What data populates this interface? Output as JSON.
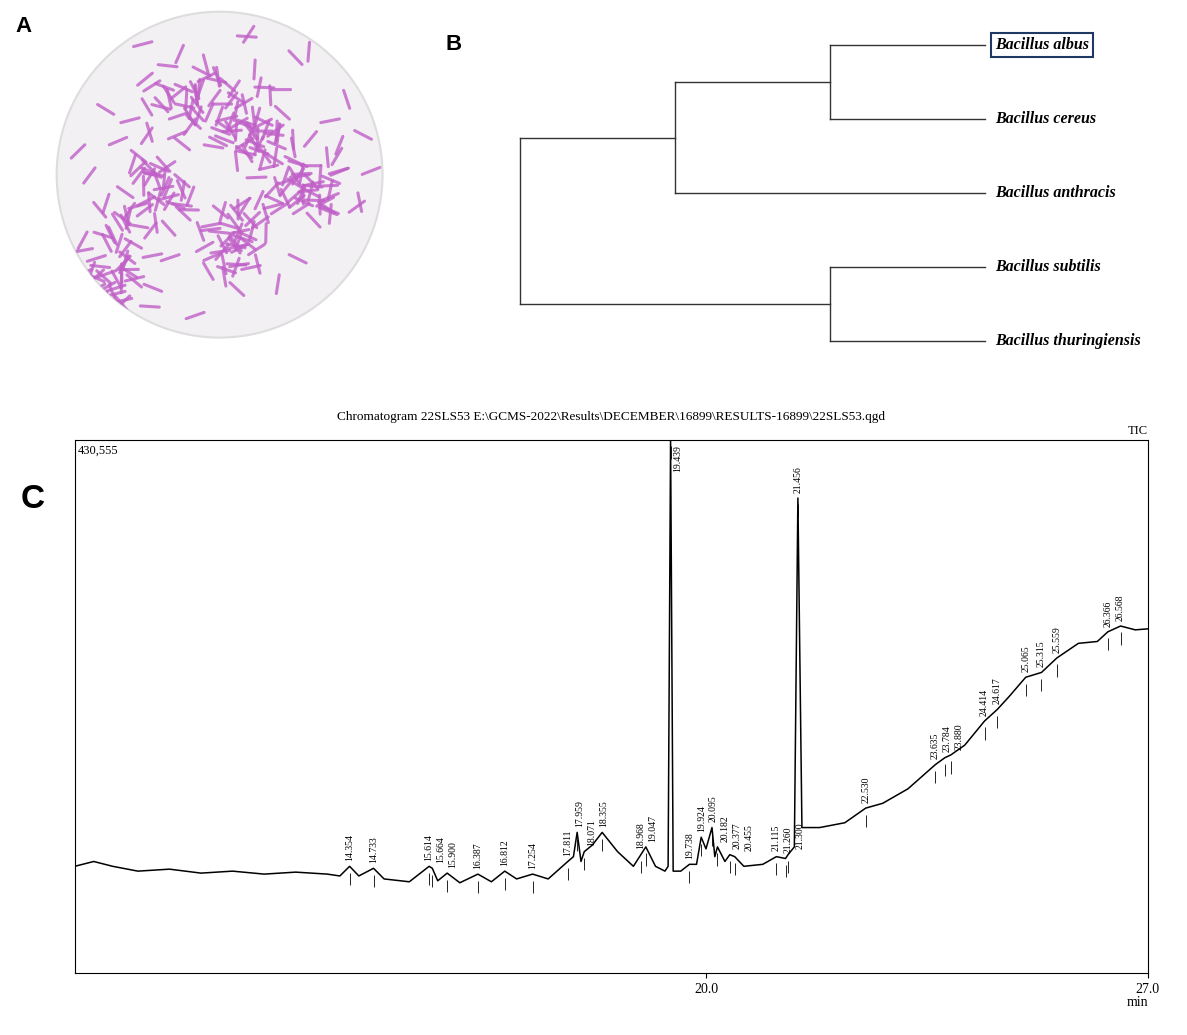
{
  "panel_labels": [
    "A",
    "B",
    "C"
  ],
  "tree": {
    "clades": [
      [
        [
          "Bacillus albus",
          "Bacillus cereus"
        ],
        "Bacillus anthracis"
      ],
      [
        "Bacillus subtilis",
        "Bacillus thuringiensis"
      ]
    ],
    "highlight": "Bacillus albus"
  },
  "chart_data": {
    "type": "line",
    "title": "Chromatogram 22SLS53 E:\\GCMS-2022\\Results\\DECEMBER\\16899\\RESULTS-16899\\22SLS53.qgd",
    "series_name": "TIC",
    "max_intensity_label": "430,555",
    "xlabel": "min",
    "color": "#000000",
    "x": [
      10.0,
      10.3,
      10.6,
      11.0,
      11.5,
      12.0,
      12.5,
      13.0,
      13.5,
      14.0,
      14.2,
      14.354,
      14.5,
      14.733,
      14.9,
      15.3,
      15.614,
      15.664,
      15.75,
      15.9,
      16.1,
      16.387,
      16.6,
      16.812,
      17.0,
      17.254,
      17.5,
      17.811,
      17.9,
      17.959,
      18.02,
      18.071,
      18.2,
      18.355,
      18.6,
      18.85,
      18.968,
      19.047,
      19.2,
      19.35,
      19.4,
      19.439,
      19.48,
      19.6,
      19.738,
      19.85,
      19.924,
      20.0,
      20.095,
      20.14,
      20.182,
      20.3,
      20.377,
      20.455,
      20.6,
      20.9,
      21.115,
      21.26,
      21.3,
      21.4,
      21.456,
      21.52,
      21.8,
      22.2,
      22.53,
      22.8,
      23.2,
      23.635,
      23.784,
      23.88,
      24.1,
      24.414,
      24.617,
      24.8,
      25.065,
      25.315,
      25.559,
      25.9,
      26.2,
      26.366,
      26.568,
      26.8,
      27.0
    ],
    "values": [
      86100,
      90000,
      86100,
      82200,
      83800,
      80600,
      82200,
      79800,
      81400,
      79800,
      78300,
      86100,
      78300,
      84500,
      75900,
      73600,
      86100,
      84500,
      74400,
      80600,
      72800,
      79800,
      73600,
      82200,
      75900,
      79800,
      75900,
      90000,
      93900,
      113500,
      90000,
      97900,
      103300,
      113500,
      97900,
      86100,
      95500,
      101800,
      86100,
      82200,
      86100,
      430555,
      82200,
      82200,
      87700,
      87700,
      109600,
      100200,
      117400,
      93900,
      101800,
      90000,
      95500,
      93900,
      86100,
      87700,
      93900,
      92400,
      95500,
      101800,
      383600,
      117400,
      117400,
      121300,
      133100,
      137000,
      148700,
      168300,
      173800,
      176100,
      184000,
      203500,
      212900,
      223100,
      238800,
      242700,
      254400,
      266200,
      267700,
      275500,
      280200,
      277100,
      277900
    ],
    "peaks": [
      {
        "x": 14.354,
        "label": "14.354"
      },
      {
        "x": 14.733,
        "label": "14.733"
      },
      {
        "x": 15.614,
        "label": "15.614"
      },
      {
        "x": 15.664,
        "label": "15.664"
      },
      {
        "x": 15.9,
        "label": "15.900"
      },
      {
        "x": 16.387,
        "label": "16.387"
      },
      {
        "x": 16.812,
        "label": "16.812"
      },
      {
        "x": 17.254,
        "label": "17.254"
      },
      {
        "x": 17.811,
        "label": "17.811"
      },
      {
        "x": 17.959,
        "label": "17.959"
      },
      {
        "x": 18.071,
        "label": "18.071"
      },
      {
        "x": 18.355,
        "label": "18.355"
      },
      {
        "x": 18.968,
        "label": "18.968"
      },
      {
        "x": 19.047,
        "label": "19.047"
      },
      {
        "x": 19.439,
        "label": "19.439"
      },
      {
        "x": 19.738,
        "label": "19.738"
      },
      {
        "x": 19.924,
        "label": "19.924"
      },
      {
        "x": 20.095,
        "label": "20.095"
      },
      {
        "x": 20.182,
        "label": "20.182"
      },
      {
        "x": 20.377,
        "label": "20.377"
      },
      {
        "x": 20.455,
        "label": "20.455"
      },
      {
        "x": 21.115,
        "label": "21.115"
      },
      {
        "x": 21.26,
        "label": "21.260"
      },
      {
        "x": 21.3,
        "label": "21.300"
      },
      {
        "x": 21.456,
        "label": "21.456"
      },
      {
        "x": 22.53,
        "label": "22.530"
      },
      {
        "x": 23.635,
        "label": "23.635"
      },
      {
        "x": 23.784,
        "label": "23.784"
      },
      {
        "x": 23.88,
        "label": "23.880"
      },
      {
        "x": 24.414,
        "label": "24.414"
      },
      {
        "x": 24.617,
        "label": "24.617"
      },
      {
        "x": 25.065,
        "label": "25.065"
      },
      {
        "x": 25.315,
        "label": "25.315"
      },
      {
        "x": 25.559,
        "label": "25.559"
      },
      {
        "x": 26.366,
        "label": "26.366"
      },
      {
        "x": 26.568,
        "label": "26.568"
      }
    ],
    "xlim": [
      10.0,
      27.0
    ],
    "ylim": [
      0,
      430555
    ],
    "xticks": [
      {
        "value": 20.0,
        "label": "20.0"
      },
      {
        "value": 27.0,
        "label": "27.0"
      }
    ],
    "tick_labels": "x"
  }
}
